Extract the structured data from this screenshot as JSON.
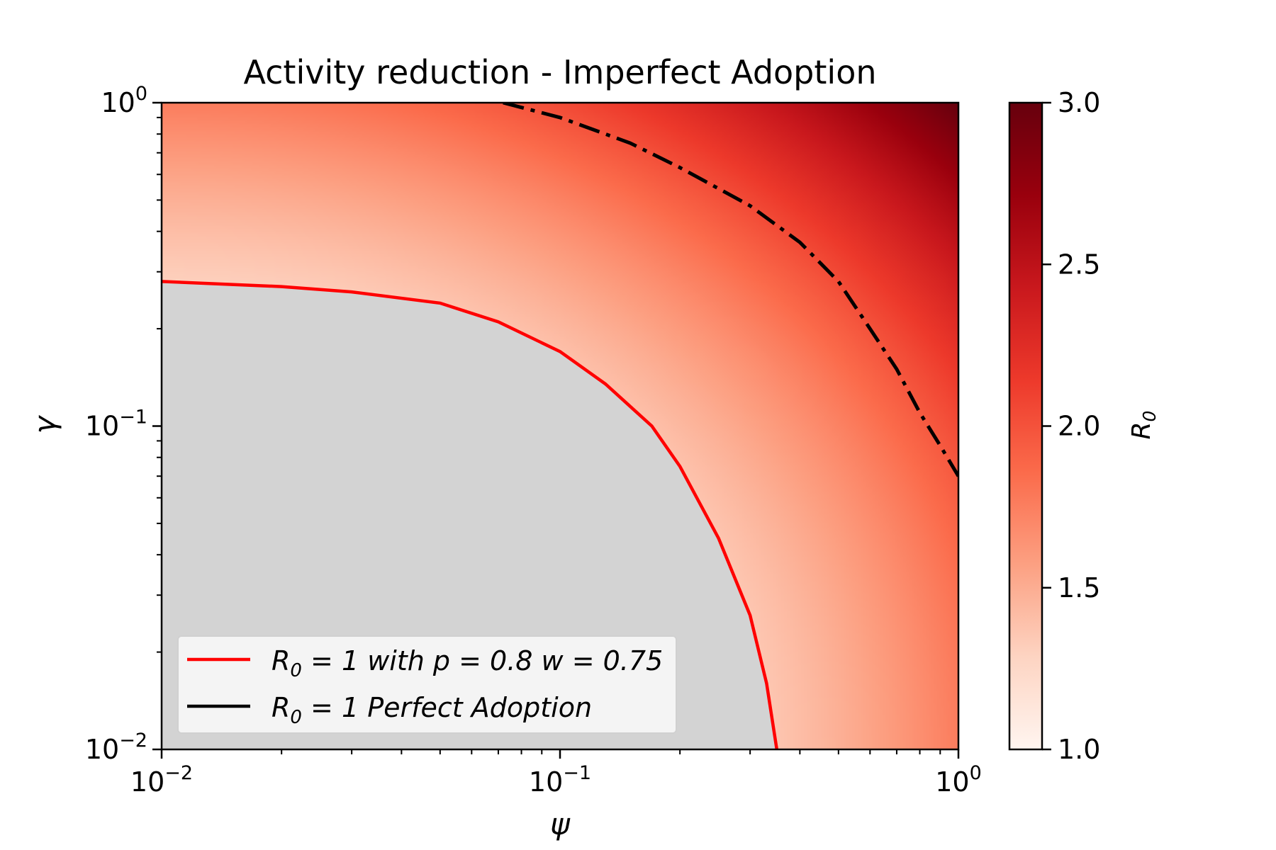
{
  "chart_data": {
    "type": "heatmap",
    "title": "Activity reduction - Imperfect Adoption",
    "xlabel": "ψ",
    "ylabel": "γ",
    "xscale": "log",
    "yscale": "log",
    "xlim": [
      0.01,
      1
    ],
    "ylim": [
      0.01,
      1
    ],
    "x_ticks": [
      {
        "value": 0.01,
        "base": "10",
        "exp": "−2"
      },
      {
        "value": 0.1,
        "base": "10",
        "exp": "−1"
      },
      {
        "value": 1,
        "base": "10",
        "exp": "0"
      }
    ],
    "y_ticks": [
      {
        "value": 0.01,
        "base": "10",
        "exp": "−2"
      },
      {
        "value": 0.1,
        "base": "10",
        "exp": "−1"
      },
      {
        "value": 1,
        "base": "10",
        "exp": "0"
      }
    ],
    "colorbar": {
      "label": "R",
      "label_sub": "0",
      "range": [
        1.0,
        3.0
      ],
      "ticks": [
        "1.0",
        "1.5",
        "2.0",
        "2.5",
        "3.0"
      ],
      "tick_values": [
        1.0,
        1.5,
        2.0,
        2.5,
        3.0
      ],
      "colormap": [
        "#fff5f0",
        "#fdd4c2",
        "#fca082",
        "#fb6b4b",
        "#ed392b",
        "#c9181d",
        "#99000d",
        "#67000d"
      ]
    },
    "below_threshold_color": "#d3d3d3",
    "series": [
      {
        "name": "R0 = 1 with p = 0.8 w = 0.75",
        "color": "#ff0000",
        "style": "solid",
        "x": [
          0.01,
          0.02,
          0.03,
          0.05,
          0.07,
          0.1,
          0.13,
          0.17,
          0.2,
          0.25,
          0.3,
          0.33,
          0.35
        ],
        "y": [
          0.28,
          0.27,
          0.26,
          0.24,
          0.21,
          0.17,
          0.135,
          0.1,
          0.075,
          0.045,
          0.026,
          0.016,
          0.01
        ]
      },
      {
        "name": "R0 = 1 Perfect Adoption",
        "color": "#000000",
        "style": "dashdot",
        "x": [
          0.072,
          0.1,
          0.15,
          0.2,
          0.3,
          0.4,
          0.5,
          0.6,
          0.7,
          0.8,
          0.9,
          1.0
        ],
        "y": [
          1.0,
          0.9,
          0.75,
          0.63,
          0.48,
          0.37,
          0.28,
          0.2,
          0.15,
          0.11,
          0.087,
          0.07
        ]
      }
    ],
    "legend": {
      "position": "lower-left",
      "entries": [
        {
          "text": "R",
          "sub": "0",
          "rest": " = 1 with p = 0.8 w = 0.75",
          "color": "#ff0000"
        },
        {
          "text": "R",
          "sub": "0",
          "rest": " = 1 Perfect Adoption",
          "color": "#000000"
        }
      ]
    }
  }
}
